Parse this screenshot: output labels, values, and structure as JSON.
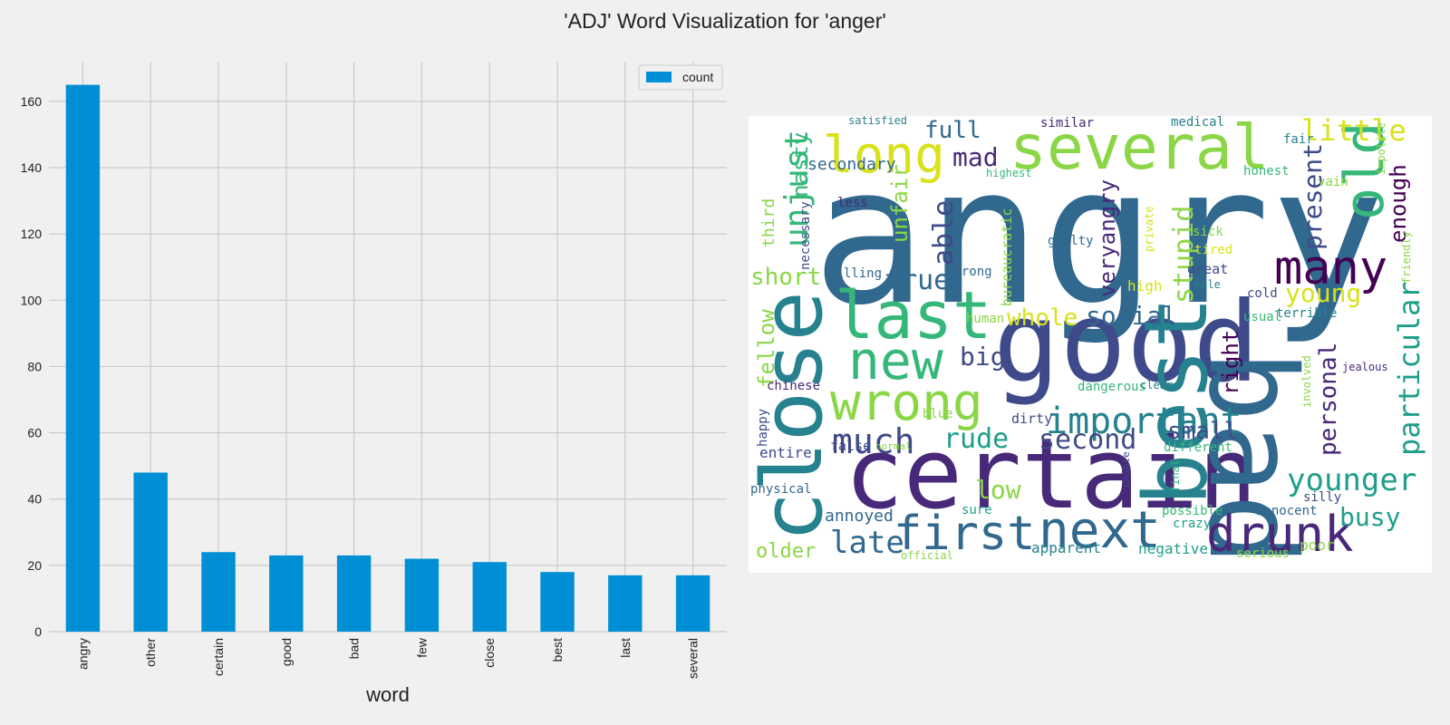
{
  "figure": {
    "title": "'ADJ' Word Visualization for 'anger'"
  },
  "chart_data": [
    {
      "type": "bar",
      "categories": [
        "angry",
        "other",
        "certain",
        "good",
        "bad",
        "few",
        "close",
        "best",
        "last",
        "several"
      ],
      "series": [
        {
          "name": "count",
          "values": [
            165,
            48,
            24,
            23,
            23,
            22,
            21,
            18,
            17,
            17
          ]
        }
      ],
      "title": "",
      "xlabel": "word",
      "ylabel": "",
      "ylim": [
        0,
        172
      ],
      "yticks": [
        0,
        20,
        40,
        60,
        80,
        100,
        120,
        140,
        160
      ],
      "grid": true,
      "legend": "top-right",
      "bar_color": "#008fd5"
    },
    {
      "type": "wordcloud",
      "background": "#ffffff",
      "words": [
        "angry",
        "certain",
        "good",
        "bad",
        "best",
        "close",
        "several",
        "last",
        "new",
        "wrong",
        "long",
        "first",
        "next",
        "drunk",
        "many",
        "important",
        "much",
        "old",
        "unjust",
        "younger",
        "particular",
        "stupid",
        "little",
        "present",
        "busy",
        "late",
        "young",
        "short",
        "social",
        "whole",
        "second",
        "small",
        "full",
        "rude",
        "personal",
        "big",
        "mad",
        "true",
        "able",
        "unfair",
        "nasty",
        "fellow",
        "veryangry",
        "right",
        "enough",
        "older",
        "low",
        "secondary",
        "third",
        "necessary",
        "bureaucratic",
        "strong",
        "willing",
        "less",
        "satisfied",
        "similar",
        "medical",
        "fair",
        "honest",
        "highest",
        "vain",
        "impolite",
        "friendly",
        "private",
        "guilty",
        "sick",
        "tired",
        "great",
        "male",
        "cold",
        "high",
        "human",
        "usual",
        "terrible",
        "jealous",
        "involved",
        "dangerous",
        "clear",
        "chinese",
        "dirty",
        "blue",
        "happy",
        "entire",
        "false",
        "normal",
        "different",
        "unable",
        "final",
        "physical",
        "silly",
        "annoyed",
        "sure",
        "possible",
        "innocent",
        "crazy",
        "apparent",
        "negative",
        "serious",
        "official",
        "poor"
      ]
    }
  ]
}
